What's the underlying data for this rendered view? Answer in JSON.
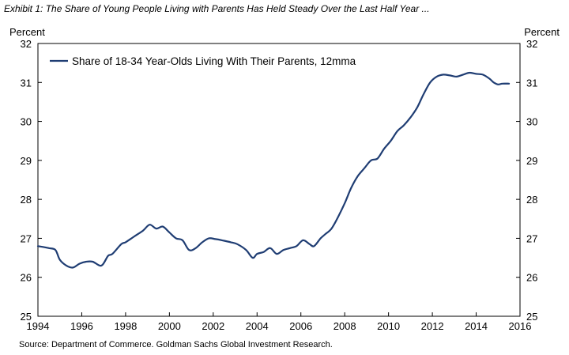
{
  "title": "Exhibit 1: The Share of Young People Living with Parents Has Held Steady Over the Last Half Year ...",
  "source": "Source: Department of Commerce. Goldman Sachs Global Investment Research.",
  "chart_data": {
    "type": "line",
    "title": "Exhibit 1: The Share of Young People Living with Parents Has Held Steady Over the Last Half Year ...",
    "ylabel_left": "Percent",
    "ylabel_right": "Percent",
    "xlim": [
      1994,
      2016
    ],
    "ylim": [
      25,
      32
    ],
    "x_ticks": [
      "1994",
      "1996",
      "1998",
      "2000",
      "2002",
      "2004",
      "2006",
      "2008",
      "2010",
      "2012",
      "2014",
      "2016"
    ],
    "y_ticks": [
      "25",
      "26",
      "27",
      "28",
      "29",
      "30",
      "31",
      "32"
    ],
    "legend_position": "top-left",
    "grid": false,
    "color": "#1f3d73",
    "series": [
      {
        "name": "Share of 18-34 Year-Olds Living With Their Parents, 12mma",
        "x": [
          1994.0,
          1994.5,
          1994.8,
          1995.0,
          1995.3,
          1995.6,
          1995.9,
          1996.2,
          1996.5,
          1996.9,
          1997.2,
          1997.4,
          1997.8,
          1998.0,
          1998.4,
          1998.8,
          1999.1,
          1999.4,
          1999.7,
          2000.0,
          2000.3,
          2000.6,
          2000.9,
          2001.2,
          2001.5,
          2001.8,
          2002.1,
          2002.4,
          2002.8,
          2003.1,
          2003.5,
          2003.8,
          2004.0,
          2004.3,
          2004.6,
          2004.9,
          2005.2,
          2005.5,
          2005.8,
          2006.1,
          2006.4,
          2006.6,
          2006.9,
          2007.1,
          2007.4,
          2007.7,
          2008.0,
          2008.3,
          2008.6,
          2008.9,
          2009.2,
          2009.5,
          2009.8,
          2010.1,
          2010.4,
          2010.7,
          2011.0,
          2011.3,
          2011.6,
          2011.9,
          2012.2,
          2012.5,
          2012.8,
          2013.1,
          2013.4,
          2013.7,
          2014.0,
          2014.3,
          2014.6,
          2014.8,
          2015.0,
          2015.2,
          2015.5
        ],
        "values": [
          26.8,
          26.75,
          26.7,
          26.45,
          26.3,
          26.25,
          26.35,
          26.4,
          26.4,
          26.3,
          26.55,
          26.6,
          26.85,
          26.9,
          27.05,
          27.2,
          27.35,
          27.25,
          27.3,
          27.15,
          27.0,
          26.95,
          26.7,
          26.75,
          26.9,
          27.0,
          26.98,
          26.95,
          26.9,
          26.85,
          26.7,
          26.5,
          26.6,
          26.65,
          26.75,
          26.6,
          26.7,
          26.75,
          26.8,
          26.95,
          26.85,
          26.8,
          27.0,
          27.1,
          27.25,
          27.55,
          27.9,
          28.3,
          28.6,
          28.8,
          29.0,
          29.05,
          29.3,
          29.5,
          29.75,
          29.9,
          30.1,
          30.35,
          30.7,
          31.0,
          31.15,
          31.2,
          31.18,
          31.15,
          31.2,
          31.25,
          31.22,
          31.2,
          31.1,
          31.0,
          30.95,
          30.97,
          30.97
        ]
      }
    ]
  }
}
